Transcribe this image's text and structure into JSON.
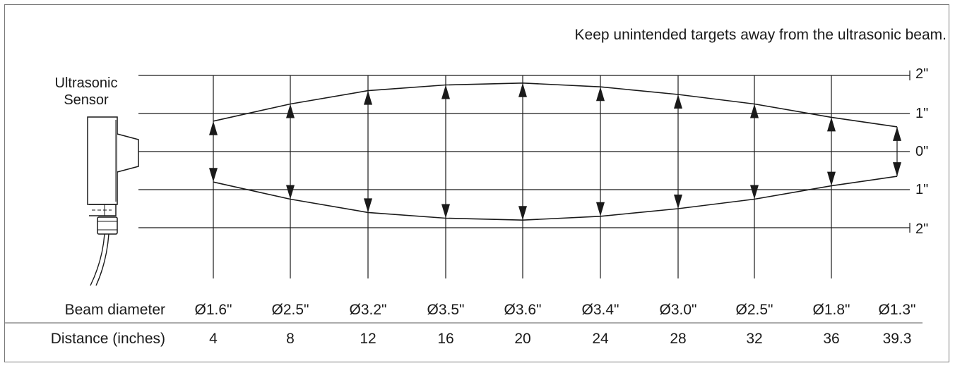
{
  "note": "Keep unintended targets away from the ultrasonic beam.",
  "sensor_label": [
    "Ultrasonic",
    "Sensor"
  ],
  "right_scale": [
    "2\"",
    "1\"",
    "0\"",
    "1\"",
    "2\""
  ],
  "row_labels": {
    "diameter": "Beam diameter",
    "distance": "Distance (inches)"
  },
  "chart_data": {
    "type": "table",
    "distance_inches": [
      4,
      8,
      12,
      16,
      20,
      24,
      28,
      32,
      36,
      39.3
    ],
    "distance_labels": [
      "4",
      "8",
      "12",
      "16",
      "20",
      "24",
      "28",
      "32",
      "36",
      "39.3"
    ],
    "beam_diameter_inches": [
      1.6,
      2.5,
      3.2,
      3.5,
      3.6,
      3.4,
      3.0,
      2.5,
      1.8,
      1.3
    ],
    "diameter_labels": [
      "Ø1.6\"",
      "Ø2.5\"",
      "Ø3.2\"",
      "Ø3.5\"",
      "Ø3.6\"",
      "Ø3.4\"",
      "Ø3.0\"",
      "Ø2.5\"",
      "Ø1.8\"",
      "Ø1.3\""
    ]
  },
  "colors": {
    "ink": "#1a1a1a",
    "frame": "#7a7a7a"
  }
}
